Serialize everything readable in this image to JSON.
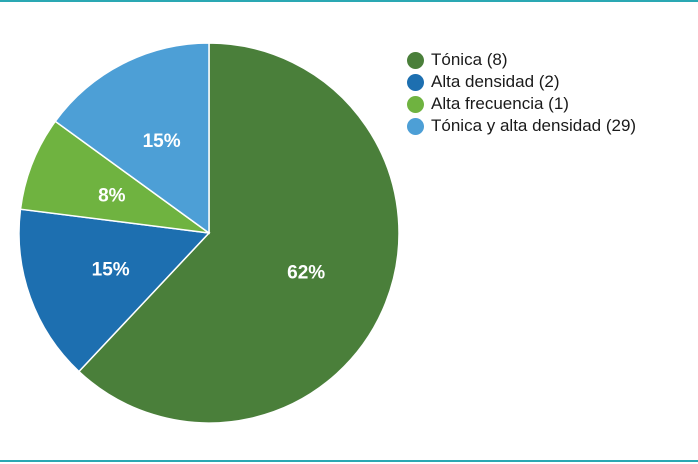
{
  "chart_data": {
    "type": "pie",
    "title": "",
    "start_angle_deg": 0,
    "direction": "clockwise",
    "legend_position": "right",
    "slices": [
      {
        "legend_label": "Tónica (8)",
        "value": 62,
        "data_label": "62%",
        "color": "#4a7f3a"
      },
      {
        "legend_label": "Alta densidad (2)",
        "value": 15,
        "data_label": "15%",
        "color": "#1d6fb0"
      },
      {
        "legend_label": "Alta frecuencia (1)",
        "value": 8,
        "data_label": "8%",
        "color": "#6fb340"
      },
      {
        "legend_label": "Tónica y alta densidad (29)",
        "value": 15,
        "data_label": "15%",
        "color": "#4d9fd6"
      }
    ]
  },
  "colors": {
    "border": "#2aa8b3",
    "slice_label_text": "#ffffff",
    "legend_text": "#1a1a1a"
  }
}
